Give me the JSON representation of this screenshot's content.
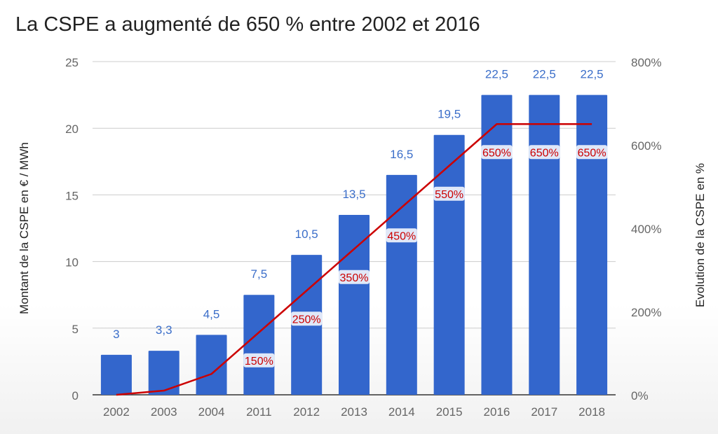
{
  "chart_data": {
    "type": "bar",
    "title": "La CSPE a augmenté de 650 % entre 2002 et 2016",
    "ylabel": "Montant de la CSPE en € / MWh",
    "y2label": "Evolution de la CSPE en %",
    "ylim": [
      0,
      25
    ],
    "y2lim": [
      0,
      800
    ],
    "yticks": [
      "0",
      "5",
      "10",
      "15",
      "20",
      "25"
    ],
    "y2ticks": [
      "0%",
      "200%",
      "400%",
      "600%",
      "800%"
    ],
    "categories": [
      "2002",
      "2003",
      "2004",
      "2011",
      "2012",
      "2013",
      "2014",
      "2015",
      "2016",
      "2017",
      "2018"
    ],
    "series": [
      {
        "type": "bar",
        "axis": "left",
        "values": [
          3,
          3.3,
          4.5,
          7.5,
          10.5,
          13.5,
          16.5,
          19.5,
          22.5,
          22.5,
          22.5
        ],
        "labels": [
          "3",
          "3,3",
          "4,5",
          "7,5",
          "10,5",
          "13,5",
          "16,5",
          "19,5",
          "22,5",
          "22,5",
          "22,5"
        ]
      },
      {
        "type": "line",
        "axis": "right",
        "values": [
          0,
          10,
          50,
          150,
          250,
          350,
          450,
          550,
          650,
          650,
          650
        ],
        "labels": [
          "",
          "",
          "",
          "150%",
          "250%",
          "350%",
          "450%",
          "550%",
          "650%",
          "650%",
          "650%"
        ]
      }
    ],
    "colors": {
      "bar": "#3366cc",
      "line": "#cc0000",
      "bar_label": "#3b6ec9",
      "axis_text": "#666666",
      "grid": "#cccccc"
    },
    "grid": true
  }
}
